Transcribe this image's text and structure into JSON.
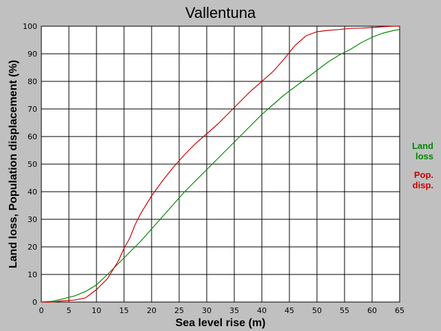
{
  "chart_data": {
    "type": "line",
    "title": "Vallentuna",
    "xlabel": "Sea level rise (m)",
    "ylabel": "Land loss, Population displacement (%)",
    "xlim": [
      0,
      65
    ],
    "ylim": [
      0,
      100
    ],
    "xticks": [
      0,
      5,
      10,
      15,
      20,
      25,
      30,
      35,
      40,
      45,
      50,
      55,
      60,
      65
    ],
    "yticks": [
      0,
      10,
      20,
      30,
      40,
      50,
      60,
      70,
      80,
      90,
      100
    ],
    "grid": true,
    "legend_placement": "right",
    "series": [
      {
        "name": "Land loss",
        "legend_lines": [
          "Land",
          "loss"
        ],
        "color": "#008800",
        "x": [
          0,
          2,
          4,
          6,
          8,
          10,
          12,
          14,
          16,
          18,
          20,
          22,
          24,
          26,
          28,
          30,
          32,
          34,
          36,
          38,
          40,
          42,
          44,
          46,
          48,
          50,
          52,
          54,
          56,
          58,
          60,
          62,
          64,
          65
        ],
        "y": [
          0,
          0.3,
          1.2,
          2.2,
          3.8,
          6.2,
          10,
          14,
          18,
          22,
          26.5,
          31,
          35.5,
          40,
          44,
          48,
          52,
          56,
          60,
          64,
          68,
          71.5,
          75,
          78,
          81,
          84,
          87,
          89.5,
          91.5,
          94,
          96,
          97.5,
          98.5,
          98.8
        ]
      },
      {
        "name": "Pop. disp.",
        "legend_lines": [
          "Pop.",
          "disp."
        ],
        "color": "#cc0000",
        "x": [
          0,
          2,
          4,
          6,
          8,
          10,
          12,
          14,
          15,
          16,
          17,
          18,
          20,
          22,
          24,
          26,
          28,
          30,
          32,
          34,
          36,
          38,
          40,
          42,
          44,
          46,
          48,
          50,
          52,
          54,
          56,
          58,
          60,
          62,
          64,
          65
        ],
        "y": [
          0,
          0,
          0.5,
          0.7,
          1.5,
          4.5,
          8.5,
          15,
          19.5,
          23,
          28,
          32,
          38.5,
          44,
          49,
          53.5,
          57.5,
          61,
          64.5,
          68.5,
          72.5,
          76.5,
          80,
          83.5,
          88,
          93,
          96.5,
          98,
          98.5,
          98.8,
          99.2,
          99.3,
          99.5,
          99.8,
          100,
          100
        ]
      }
    ]
  }
}
